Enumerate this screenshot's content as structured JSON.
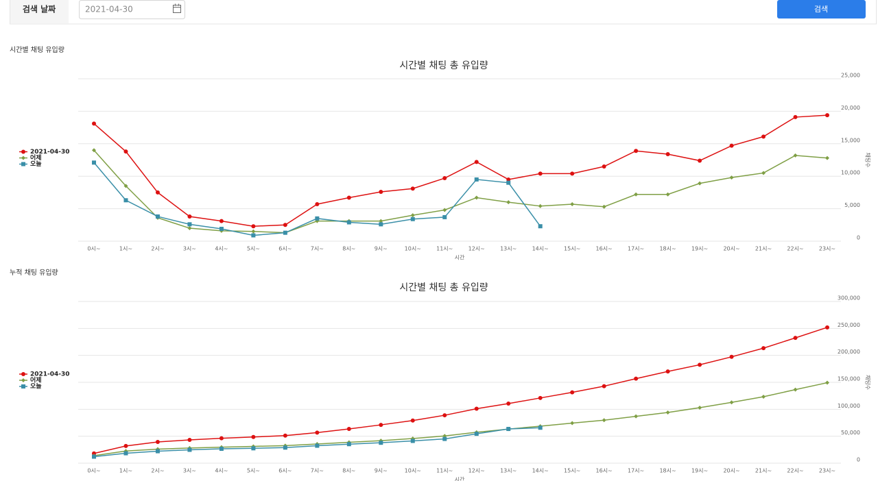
{
  "header": {
    "label": "검색 날짜",
    "date": "2021-04-30",
    "button": "검색"
  },
  "chart_data": [
    {
      "type": "line",
      "section_title": "시간별 채팅 유입량",
      "title": "시간별 채팅 총 유입량",
      "x_label": "시간",
      "y_label": "채팅수",
      "categories": [
        "0시~",
        "1시~",
        "2시~",
        "3시~",
        "4시~",
        "5시~",
        "6시~",
        "7시~",
        "8시~",
        "9시~",
        "10시~",
        "11시~",
        "12시~",
        "13시~",
        "14시~",
        "15시~",
        "16시~",
        "17시~",
        "18시~",
        "19시~",
        "20시~",
        "21시~",
        "22시~",
        "23시~"
      ],
      "series": [
        {
          "name": "2021-04-30",
          "color": "#dd1111",
          "marker": "circle",
          "values": [
            18100,
            13800,
            7500,
            3800,
            3100,
            2300,
            2500,
            5700,
            6700,
            7600,
            8100,
            9700,
            12200,
            9500,
            10400,
            10400,
            11500,
            13900,
            13400,
            12400,
            14700,
            16100,
            19100,
            19400
          ]
        },
        {
          "name": "어제",
          "color": "#7f9f45",
          "marker": "diamond",
          "values": [
            14000,
            8500,
            3600,
            2000,
            1600,
            1500,
            1300,
            3100,
            3100,
            3100,
            4000,
            4800,
            6700,
            6000,
            5400,
            5700,
            5300,
            7200,
            7200,
            8900,
            9800,
            10500,
            13200,
            12800
          ]
        },
        {
          "name": "오늘",
          "color": "#3a8fa8",
          "marker": "square",
          "values": [
            12100,
            6300,
            3800,
            2600,
            1900,
            900,
            1300,
            3500,
            2900,
            2600,
            3400,
            3700,
            9500,
            9000,
            2300,
            null,
            null,
            null,
            null,
            null,
            null,
            null,
            null,
            null
          ]
        }
      ],
      "ylim": [
        0,
        25000
      ],
      "yticks": [
        0,
        {
          "value": 5000,
          "label": "5,000"
        },
        {
          "value": 10000,
          "label": "10,000"
        },
        {
          "value": 15000,
          "label": "15,000"
        },
        {
          "value": 20000,
          "label": "20,000"
        },
        {
          "value": 25000,
          "label": "25,000"
        }
      ],
      "grid": true,
      "legend": "left"
    },
    {
      "type": "line",
      "section_title": "누적 채팅 유입량",
      "title": "시간별 채팅 총 유입량",
      "x_label": "시간",
      "y_label": "채팅수",
      "categories": [
        "0시~",
        "1시~",
        "2시~",
        "3시~",
        "4시~",
        "5시~",
        "6시~",
        "7시~",
        "8시~",
        "9시~",
        "10시~",
        "11시~",
        "12시~",
        "13시~",
        "14시~",
        "15시~",
        "16시~",
        "17시~",
        "18시~",
        "19시~",
        "20시~",
        "21시~",
        "22시~",
        "23시~"
      ],
      "series": [
        {
          "name": "2021-04-30",
          "color": "#dd1111",
          "marker": "circle",
          "values": [
            18100,
            31900,
            39400,
            43200,
            46300,
            48600,
            51100,
            56800,
            63500,
            71100,
            79200,
            88900,
            101100,
            110600,
            121000,
            131400,
            142900,
            156800,
            170200,
            182600,
            197300,
            213400,
            232500,
            251900
          ]
        },
        {
          "name": "어제",
          "color": "#7f9f45",
          "marker": "diamond",
          "values": [
            14000,
            22500,
            26100,
            28100,
            29700,
            31200,
            32500,
            35600,
            38700,
            41800,
            45800,
            50600,
            57300,
            63300,
            68700,
            74400,
            79700,
            86900,
            94100,
            103000,
            112800,
            123300,
            136500,
            149300
          ]
        },
        {
          "name": "오늘",
          "color": "#3a8fa8",
          "marker": "square",
          "values": [
            12100,
            18400,
            22200,
            24800,
            26700,
            27600,
            28900,
            32400,
            35300,
            37900,
            41300,
            45000,
            54500,
            63500,
            65800,
            null,
            null,
            null,
            null,
            null,
            null,
            null,
            null,
            null
          ]
        }
      ],
      "ylim": [
        0,
        300000
      ],
      "yticks": [
        0,
        {
          "value": 50000,
          "label": "50,000"
        },
        {
          "value": 100000,
          "label": "100,000"
        },
        {
          "value": 150000,
          "label": "150,000"
        },
        {
          "value": 200000,
          "label": "200,000"
        },
        {
          "value": 250000,
          "label": "250,000"
        },
        {
          "value": 300000,
          "label": "300,000"
        }
      ],
      "grid": true,
      "legend": "left"
    }
  ]
}
